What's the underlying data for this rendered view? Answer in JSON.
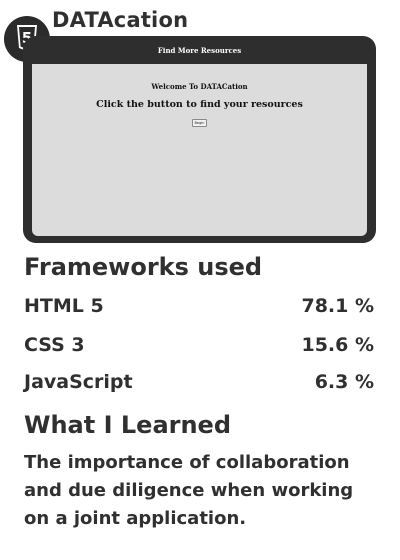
{
  "app": {
    "title": "DATAcation",
    "logo_icon": "html5-shield-icon",
    "logo_glyph": "5"
  },
  "preview": {
    "header_title": "Find More Resources",
    "welcome": "Welcome To DATACation",
    "subtitle": "Click the button to find your resources",
    "button_label": "Begin"
  },
  "frameworks": {
    "heading": "Frameworks used",
    "items": [
      {
        "name": "HTML 5",
        "percent": "78.1 %"
      },
      {
        "name": "CSS 3",
        "percent": "15.6 %"
      },
      {
        "name": "JavaScript",
        "percent": "6.3 %"
      }
    ]
  },
  "learned": {
    "heading": "What I Learned",
    "text": "The importance of collaboration and due diligence when working on a joint application."
  },
  "colors": {
    "text": "#303030",
    "device": "#2e2e2e",
    "screen": "#dcdcdc"
  }
}
